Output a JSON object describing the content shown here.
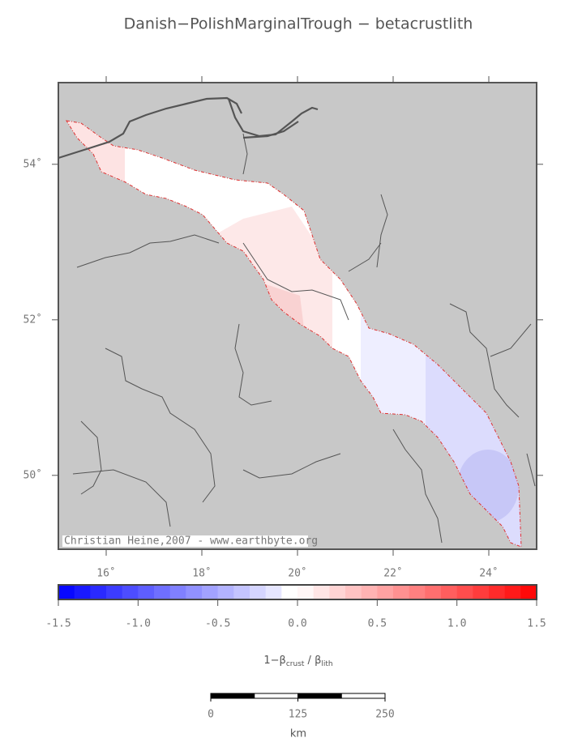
{
  "title": "Danish−PolishMarginalTrough − betacrustlith",
  "map": {
    "lon_range": [
      15,
      25
    ],
    "lat_range": [
      49.05,
      55.05
    ],
    "lon_ticks": [
      {
        "value": 16,
        "label": "16˚"
      },
      {
        "value": 18,
        "label": "18˚"
      },
      {
        "value": 20,
        "label": "20˚"
      },
      {
        "value": 22,
        "label": "22˚"
      },
      {
        "value": 24,
        "label": "24˚"
      }
    ],
    "lat_ticks": [
      {
        "value": 50,
        "label": "50˚"
      },
      {
        "value": 52,
        "label": "52˚"
      },
      {
        "value": 54,
        "label": "54˚"
      }
    ],
    "credit": "Christian Heine,2007 - www.earthbyte.org"
  },
  "colorbar": {
    "range": [
      -1.5,
      1.5
    ],
    "ticks": [
      {
        "value": -1.5,
        "label": "-1.5"
      },
      {
        "value": -1,
        "label": "-1.0"
      },
      {
        "value": -0.5,
        "label": "-0.5"
      },
      {
        "value": 0,
        "label": "0.0"
      },
      {
        "value": 0.5,
        "label": "0.5"
      },
      {
        "value": 1,
        "label": "1.0"
      },
      {
        "value": 1.5,
        "label": "1.5"
      }
    ],
    "label": {
      "main": "1−β",
      "sub1": "crust",
      "mid": " / β",
      "sub2": "lith"
    }
  },
  "scalebar": {
    "ticks": [
      0,
      125,
      250
    ],
    "unit": "km"
  }
}
